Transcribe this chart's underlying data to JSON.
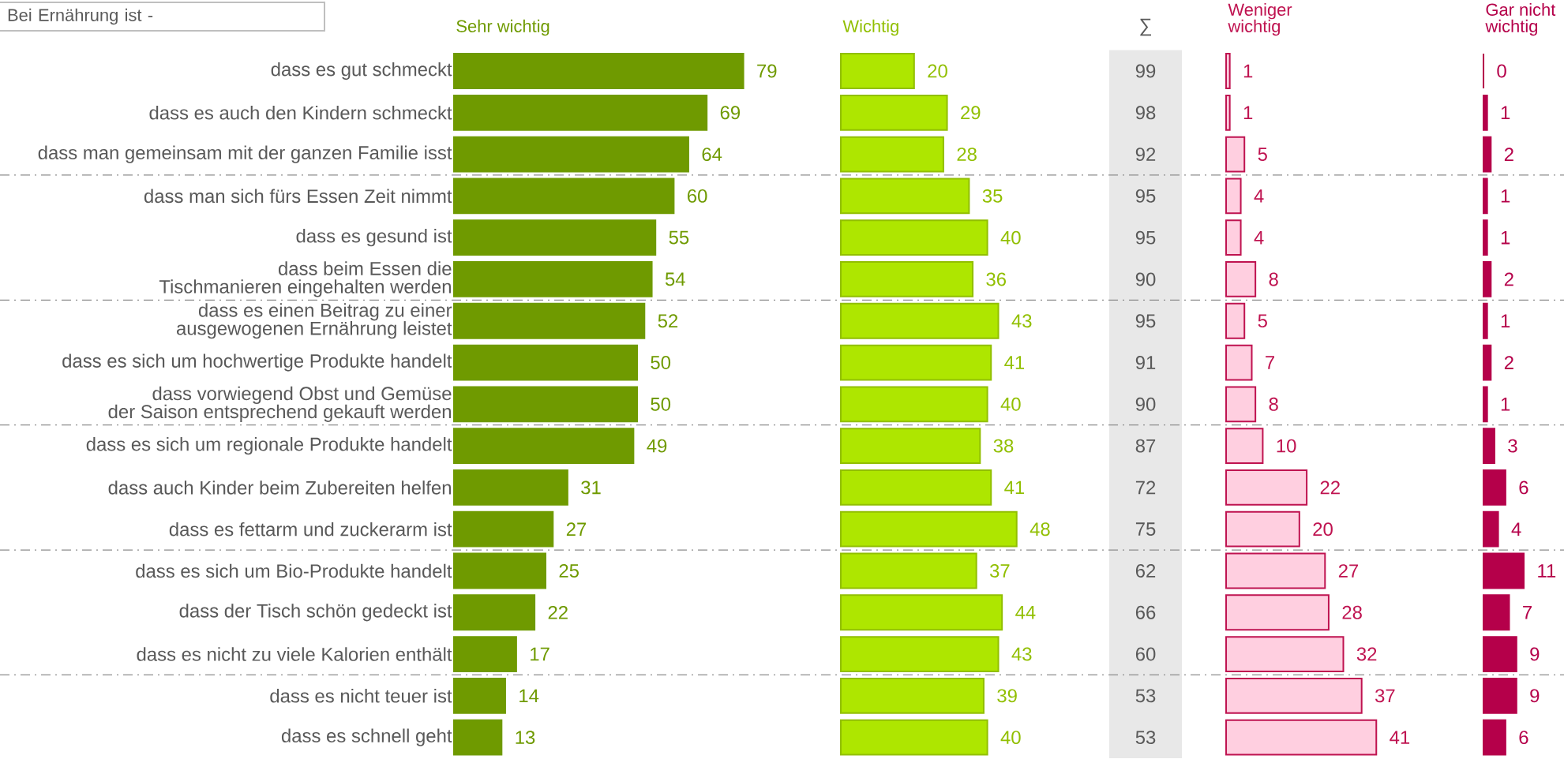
{
  "chart_data": [
    {
      "type": "bar",
      "orientation": "horizontal",
      "title": "Sehr wichtig",
      "annotations": [
        "Bei Ernährung ist -"
      ],
      "categories": [
        "dass es gut schmeckt",
        "dass es auch den Kindern schmeckt",
        "dass man gemeinsam mit der ganzen Familie isst",
        "dass man sich fürs Essen Zeit nimmt",
        "dass es gesund ist",
        "dass beim Essen die\nTischmanieren eingehalten werden",
        "dass es einen Beitrag zu einer\nausgewogenen Ernährung leistet",
        "dass es sich um hochwertige Produkte handelt",
        "dass vorwiegend Obst und Gemüse\nder Saison entsprechend gekauft werden",
        "dass es sich um regionale Produkte handelt",
        "dass auch Kinder beim Zubereiten helfen",
        "dass es fettarm und zuckerarm ist",
        "dass es sich um Bio-Produkte handelt",
        "dass der Tisch schön gedeckt ist",
        "dass es nicht zu viele Kalorien enthält",
        "dass es nicht teuer ist",
        "dass es schnell geht"
      ],
      "values": [
        79,
        69,
        64,
        60,
        55,
        54,
        52,
        50,
        50,
        49,
        31,
        27,
        25,
        22,
        17,
        14,
        13
      ],
      "color": "#6f9a00",
      "data_labels": true,
      "tick_labels": "y"
    },
    {
      "type": "bar",
      "orientation": "horizontal",
      "title": "Wichtig",
      "categories": [
        null,
        null,
        null,
        null,
        null,
        null,
        null,
        null,
        null,
        null,
        null,
        null,
        null,
        null,
        null,
        null,
        null
      ],
      "values": [
        20,
        29,
        28,
        35,
        40,
        36,
        43,
        41,
        40,
        38,
        41,
        48,
        37,
        44,
        43,
        39,
        40
      ],
      "color": "#aee600",
      "data_labels": true,
      "tick_labels": false
    },
    {
      "type": "other",
      "title": "∑",
      "categories": [
        null,
        null,
        null,
        null,
        null,
        null,
        null,
        null,
        null,
        null,
        null,
        null,
        null,
        null,
        null,
        null,
        null
      ],
      "values": [
        99,
        98,
        92,
        95,
        95,
        90,
        95,
        91,
        90,
        87,
        72,
        75,
        62,
        66,
        60,
        53,
        53
      ],
      "data_labels": true
    },
    {
      "type": "bar",
      "orientation": "horizontal",
      "title": "Weniger\nwichtig",
      "categories": [
        null,
        null,
        null,
        null,
        null,
        null,
        null,
        null,
        null,
        null,
        null,
        null,
        null,
        null,
        null,
        null,
        null
      ],
      "values": [
        1,
        1,
        5,
        4,
        4,
        8,
        5,
        7,
        8,
        10,
        22,
        20,
        27,
        28,
        32,
        37,
        41
      ],
      "color": "#ffcfe0",
      "data_labels": true,
      "tick_labels": false
    },
    {
      "type": "bar",
      "orientation": "horizontal",
      "title": "Gar nicht\nwichtig",
      "categories": [
        null,
        null,
        null,
        null,
        null,
        null,
        null,
        null,
        null,
        null,
        null,
        null,
        null,
        null,
        null,
        null,
        null
      ],
      "values": [
        0,
        1,
        2,
        1,
        1,
        2,
        1,
        2,
        1,
        3,
        6,
        4,
        11,
        7,
        9,
        9,
        6
      ],
      "color": "#b5004a",
      "data_labels": true,
      "tick_labels": false
    }
  ]
}
